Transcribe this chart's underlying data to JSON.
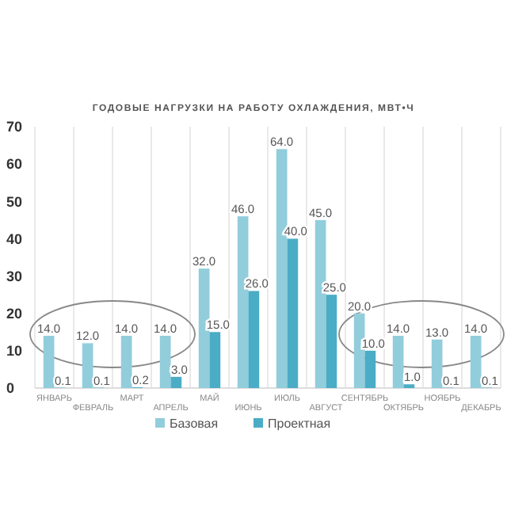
{
  "chart_data": {
    "type": "bar",
    "title": "ГОДОВЫЕ НАГРУЗКИ НА РАБОТУ ОХЛАЖДЕНИЯ, МВТ•Ч",
    "categories": [
      "ЯНВАРЬ",
      "ФЕВРАЛЬ",
      "МАРТ",
      "АПРЕЛЬ",
      "МАЙ",
      "ИЮНЬ",
      "ИЮЛЬ",
      "АВГУСТ",
      "СЕНТЯБРЬ",
      "ОКТЯБРЬ",
      "НОЯБРЬ",
      "ДЕКАБРЬ"
    ],
    "series": [
      {
        "name": "Базовая",
        "color": "#92cddc",
        "values": [
          14,
          12,
          14,
          14,
          32,
          46,
          64,
          45,
          20,
          14,
          13,
          14
        ],
        "value_labels": [
          "14.0",
          "12.0",
          "14.0",
          "14.0",
          "32.0",
          "46.0",
          "64.0",
          "45.0",
          "20.0",
          "14.0",
          "13.0",
          "14.0"
        ]
      },
      {
        "name": "Проектная",
        "color": "#4bacc6",
        "values": [
          0.1,
          0.1,
          0.2,
          3,
          15,
          26,
          40,
          25,
          10,
          1,
          0.1,
          0.1
        ],
        "value_labels": [
          "0.1",
          "0.1",
          "0.2",
          "3.0",
          "15.0",
          "26.0",
          "40.0",
          "25.0",
          "10.0",
          "1.0",
          "0.1",
          "0.1"
        ]
      }
    ],
    "ylim": [
      0,
      70
    ],
    "yticks": [
      0,
      10,
      20,
      30,
      40,
      50,
      60,
      70
    ],
    "grid": "x",
    "legend": "bottom"
  }
}
